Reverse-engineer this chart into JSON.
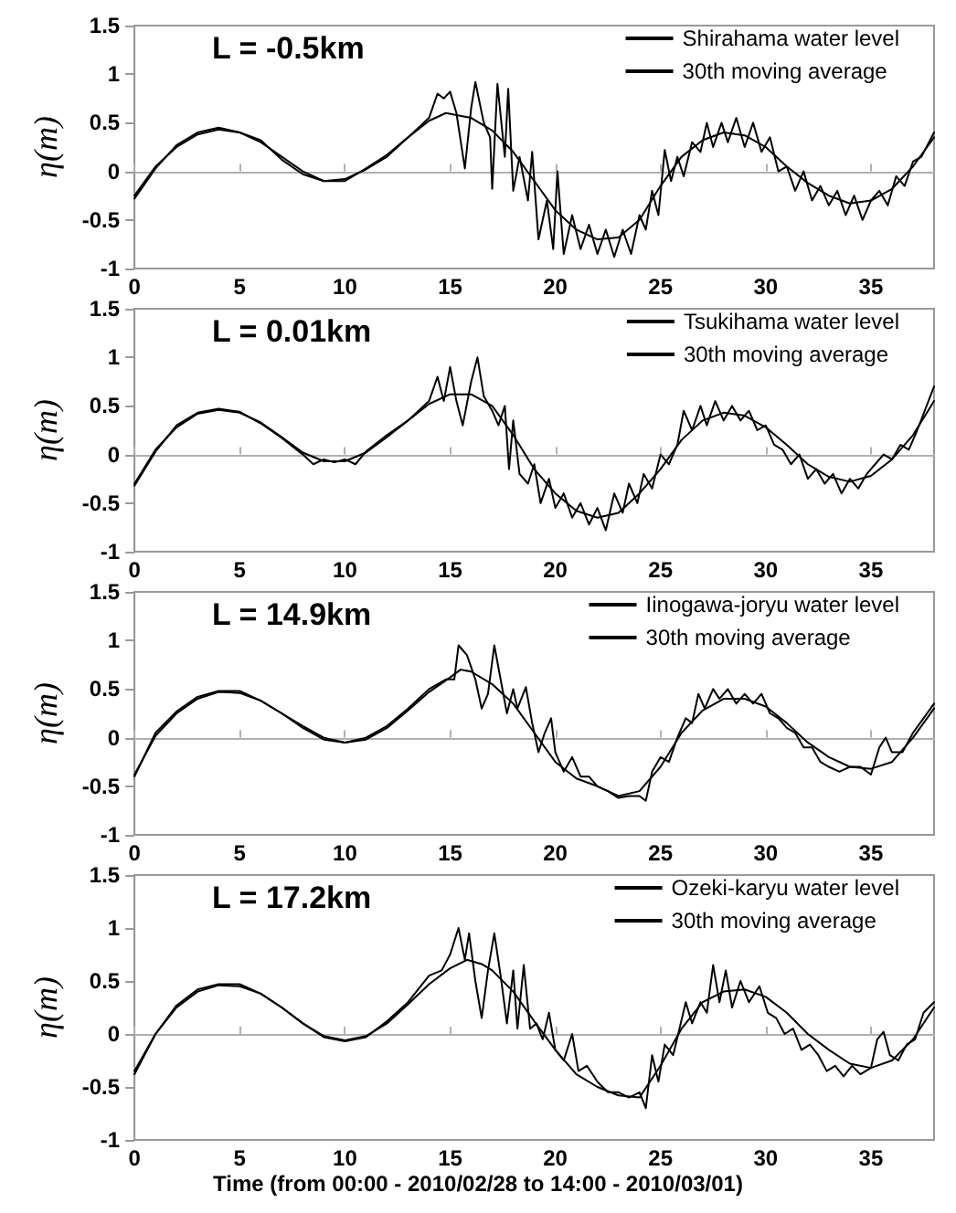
{
  "chart_data": [
    {
      "type": "line",
      "annotations": [
        "L = -0.5km"
      ],
      "ylabel": "η(m)",
      "xlim": [
        0,
        38
      ],
      "xticks": [
        0,
        5,
        10,
        15,
        20,
        25,
        30,
        35
      ],
      "ylim": [
        -1,
        1.5
      ],
      "yticks": [
        -1,
        -0.5,
        0,
        0.5,
        1,
        1.5
      ],
      "legend": "top right",
      "marker": "none",
      "line_style": "solid",
      "series": [
        {
          "name": "Shirahama water level",
          "color": "#000000",
          "x": [
            0,
            1,
            2,
            3,
            4,
            5,
            6,
            7,
            8,
            9,
            10,
            11,
            12,
            13,
            14,
            14.4,
            14.7,
            15,
            15.3,
            15.7,
            16,
            16.2,
            16.6,
            16.9,
            17.0,
            17.25,
            17.6,
            17.76,
            18,
            18.3,
            18.7,
            18.9,
            19.2,
            19.6,
            19.9,
            20.1,
            20.4,
            20.8,
            21.2,
            21.6,
            22,
            22.4,
            22.8,
            23.2,
            23.6,
            24,
            24.3,
            24.6,
            24.9,
            25.2,
            25.5,
            25.8,
            26.1,
            26.5,
            26.9,
            27.2,
            27.5,
            27.9,
            28.2,
            28.6,
            29,
            29.4,
            29.8,
            30.2,
            30.6,
            31,
            31.4,
            31.8,
            32.2,
            32.6,
            33,
            33.4,
            33.8,
            34.2,
            34.6,
            35,
            35.4,
            35.8,
            36.2,
            36.6,
            37,
            37.4,
            38
          ],
          "values": [
            -0.28,
            0.03,
            0.27,
            0.4,
            0.45,
            0.4,
            0.32,
            0.12,
            -0.03,
            -0.1,
            -0.1,
            0.03,
            0.17,
            0.35,
            0.55,
            0.8,
            0.75,
            0.82,
            0.6,
            0.03,
            0.65,
            0.92,
            0.5,
            0.35,
            -0.18,
            0.9,
            0.15,
            0.85,
            -0.2,
            0.15,
            -0.3,
            0.2,
            -0.7,
            -0.3,
            -0.8,
            0.0,
            -0.85,
            -0.45,
            -0.8,
            -0.55,
            -0.85,
            -0.6,
            -0.88,
            -0.6,
            -0.85,
            -0.45,
            -0.6,
            -0.2,
            -0.45,
            0.22,
            -0.1,
            0.15,
            -0.05,
            0.3,
            0.2,
            0.5,
            0.25,
            0.5,
            0.3,
            0.55,
            0.25,
            0.5,
            0.2,
            0.35,
            0.0,
            0.05,
            -0.2,
            0.0,
            -0.3,
            -0.15,
            -0.35,
            -0.2,
            -0.45,
            -0.25,
            -0.5,
            -0.3,
            -0.2,
            -0.35,
            -0.05,
            -0.15,
            0.1,
            0.15,
            0.4
          ]
        },
        {
          "name": "30th moving average",
          "color": "#000000",
          "x": [
            0,
            1,
            2,
            3,
            4,
            5,
            6,
            7,
            8,
            9,
            10,
            11,
            12,
            13,
            14,
            14.8,
            16,
            17,
            18,
            19,
            20,
            21,
            22,
            23,
            24,
            25,
            26,
            27,
            28,
            29,
            30,
            31,
            32,
            33,
            34,
            35,
            36,
            37,
            38
          ],
          "values": [
            -0.25,
            0.05,
            0.25,
            0.38,
            0.43,
            0.4,
            0.3,
            0.15,
            0.0,
            -0.1,
            -0.08,
            0.02,
            0.15,
            0.35,
            0.52,
            0.6,
            0.55,
            0.42,
            0.2,
            -0.1,
            -0.4,
            -0.6,
            -0.7,
            -0.68,
            -0.5,
            -0.15,
            0.15,
            0.32,
            0.4,
            0.37,
            0.25,
            0.05,
            -0.12,
            -0.25,
            -0.33,
            -0.3,
            -0.18,
            0.05,
            0.35
          ]
        }
      ]
    },
    {
      "type": "line",
      "annotations": [
        "L = 0.01km"
      ],
      "ylabel": "η(m)",
      "xlim": [
        0,
        38
      ],
      "xticks": [
        0,
        5,
        10,
        15,
        20,
        25,
        30,
        35
      ],
      "ylim": [
        -1,
        1.5
      ],
      "yticks": [
        -1,
        -0.5,
        0,
        0.5,
        1,
        1.5
      ],
      "legend": "top right",
      "marker": "none",
      "line_style": "solid",
      "series": [
        {
          "name": "Tsukihama water level",
          "color": "#000000",
          "x": [
            0,
            1,
            2,
            3,
            4,
            5,
            6,
            7,
            8,
            8.5,
            9,
            9.5,
            10,
            10.5,
            11,
            12,
            13,
            14,
            14.4,
            14.7,
            15,
            15.3,
            15.6,
            16,
            16.3,
            16.6,
            17,
            17.3,
            17.6,
            17.8,
            18,
            18.3,
            18.7,
            19,
            19.3,
            19.7,
            20,
            20.4,
            20.8,
            21.2,
            21.6,
            22,
            22.4,
            22.8,
            23.2,
            23.5,
            23.9,
            24.2,
            24.6,
            25,
            25.4,
            25.8,
            26.1,
            26.5,
            26.9,
            27.2,
            27.6,
            28,
            28.4,
            28.8,
            29.2,
            29.6,
            30,
            30.4,
            30.8,
            31.2,
            31.6,
            32,
            32.4,
            32.8,
            33.2,
            33.6,
            34,
            34.4,
            34.8,
            35.2,
            35.6,
            36,
            36.4,
            36.8,
            37.2,
            38
          ],
          "values": [
            -0.32,
            0.03,
            0.3,
            0.43,
            0.47,
            0.44,
            0.32,
            0.17,
            0.0,
            -0.1,
            -0.05,
            -0.08,
            -0.05,
            -0.1,
            0.03,
            0.2,
            0.35,
            0.55,
            0.8,
            0.55,
            0.9,
            0.55,
            0.3,
            0.75,
            1.0,
            0.6,
            0.45,
            0.3,
            0.5,
            -0.15,
            0.35,
            -0.2,
            -0.3,
            -0.1,
            -0.5,
            -0.25,
            -0.55,
            -0.4,
            -0.65,
            -0.5,
            -0.72,
            -0.55,
            -0.78,
            -0.4,
            -0.6,
            -0.3,
            -0.5,
            -0.2,
            -0.35,
            0.0,
            -0.1,
            0.1,
            0.45,
            0.25,
            0.5,
            0.3,
            0.55,
            0.35,
            0.5,
            0.35,
            0.45,
            0.25,
            0.3,
            0.1,
            0.05,
            -0.1,
            0.0,
            -0.25,
            -0.15,
            -0.3,
            -0.2,
            -0.4,
            -0.25,
            -0.35,
            -0.2,
            -0.1,
            0.0,
            -0.05,
            0.1,
            0.05,
            0.25,
            0.7
          ]
        },
        {
          "name": "30th moving average",
          "color": "#000000",
          "x": [
            0,
            1,
            2,
            3,
            4,
            5,
            6,
            7,
            8,
            9,
            10,
            11,
            12,
            13,
            14,
            15,
            16,
            17,
            18,
            19,
            20,
            21,
            22,
            23,
            24,
            25,
            26,
            27,
            28,
            29,
            30,
            31,
            32,
            33,
            34,
            35,
            36,
            37,
            38
          ],
          "values": [
            -0.3,
            0.05,
            0.28,
            0.42,
            0.46,
            0.43,
            0.33,
            0.18,
            0.02,
            -0.07,
            -0.07,
            0.02,
            0.18,
            0.35,
            0.52,
            0.62,
            0.62,
            0.5,
            0.2,
            -0.15,
            -0.4,
            -0.58,
            -0.65,
            -0.6,
            -0.4,
            -0.15,
            0.15,
            0.35,
            0.43,
            0.4,
            0.28,
            0.1,
            -0.1,
            -0.23,
            -0.28,
            -0.22,
            -0.05,
            0.2,
            0.55
          ]
        }
      ]
    },
    {
      "type": "line",
      "annotations": [
        "L = 14.9km"
      ],
      "ylabel": "η(m)",
      "xlim": [
        0,
        38
      ],
      "xticks": [
        0,
        5,
        10,
        15,
        20,
        25,
        30,
        35
      ],
      "ylim": [
        -1,
        1.5
      ],
      "yticks": [
        -1,
        -0.5,
        0,
        0.5,
        1,
        1.5
      ],
      "legend": "top right",
      "marker": "none",
      "line_style": "solid",
      "series": [
        {
          "name": "Iinogawa-joryu water level",
          "color": "#000000",
          "x": [
            0,
            1,
            2,
            3,
            4,
            5,
            6,
            7,
            8,
            9,
            10,
            11,
            12,
            13,
            14,
            14.8,
            15.2,
            15.4,
            15.8,
            16.2,
            16.5,
            16.8,
            17.1,
            17.4,
            17.7,
            18,
            18.2,
            18.6,
            18.9,
            19.2,
            19.5,
            19.8,
            20,
            20.4,
            20.8,
            21.2,
            21.6,
            22,
            22.5,
            23,
            23.5,
            24,
            24.3,
            24.6,
            25,
            25.4,
            25.8,
            26.2,
            26.5,
            26.8,
            27.1,
            27.5,
            27.8,
            28.2,
            28.6,
            29,
            29.4,
            29.8,
            30.2,
            30.6,
            31,
            31.4,
            31.8,
            32.2,
            32.6,
            33,
            33.5,
            34,
            34.5,
            35,
            35.4,
            35.7,
            36,
            36.5,
            37,
            37.5,
            38
          ],
          "values": [
            -0.4,
            0.05,
            0.27,
            0.42,
            0.48,
            0.48,
            0.38,
            0.25,
            0.1,
            -0.02,
            -0.05,
            0.0,
            0.12,
            0.3,
            0.5,
            0.6,
            0.6,
            0.95,
            0.85,
            0.6,
            0.3,
            0.45,
            0.95,
            0.6,
            0.25,
            0.5,
            0.3,
            0.52,
            0.15,
            -0.15,
            0.05,
            0.2,
            -0.15,
            -0.35,
            -0.2,
            -0.4,
            -0.4,
            -0.5,
            -0.55,
            -0.62,
            -0.6,
            -0.6,
            -0.65,
            -0.35,
            -0.2,
            -0.25,
            0.0,
            0.2,
            0.15,
            0.45,
            0.3,
            0.5,
            0.4,
            0.5,
            0.35,
            0.45,
            0.35,
            0.45,
            0.25,
            0.2,
            0.1,
            0.05,
            -0.1,
            -0.1,
            -0.25,
            -0.3,
            -0.35,
            -0.3,
            -0.3,
            -0.38,
            -0.1,
            0.0,
            -0.15,
            -0.15,
            0.05,
            0.2,
            0.35
          ]
        },
        {
          "name": "30th moving average",
          "color": "#000000",
          "x": [
            0,
            1,
            2,
            3,
            4,
            5,
            6,
            7,
            8,
            9,
            10,
            11,
            12,
            13,
            14,
            15,
            15.5,
            16,
            17,
            18,
            19,
            20,
            21,
            22,
            23,
            24,
            25,
            26,
            27,
            28,
            29,
            30,
            31,
            32,
            33,
            34,
            35,
            36,
            37,
            38
          ],
          "values": [
            -0.38,
            0.02,
            0.25,
            0.4,
            0.47,
            0.46,
            0.38,
            0.25,
            0.12,
            0.0,
            -0.05,
            -0.02,
            0.1,
            0.28,
            0.47,
            0.62,
            0.7,
            0.68,
            0.55,
            0.35,
            0.05,
            -0.25,
            -0.42,
            -0.5,
            -0.6,
            -0.55,
            -0.3,
            0.05,
            0.28,
            0.4,
            0.4,
            0.32,
            0.15,
            -0.05,
            -0.2,
            -0.3,
            -0.32,
            -0.25,
            0.0,
            0.3
          ]
        }
      ]
    },
    {
      "type": "line",
      "annotations": [
        "L = 17.2km"
      ],
      "ylabel": "η(m)",
      "xlabel": "Time (from 00:00 - 2010/02/28 to 14:00 - 2010/03/01)",
      "xlim": [
        0,
        38
      ],
      "xticks": [
        0,
        5,
        10,
        15,
        20,
        25,
        30,
        35
      ],
      "ylim": [
        -1,
        1.5
      ],
      "yticks": [
        -1,
        -0.5,
        0,
        0.5,
        1,
        1.5
      ],
      "legend": "top right",
      "marker": "none",
      "line_style": "solid",
      "series": [
        {
          "name": "Ozeki-karyu water level",
          "color": "#000000",
          "x": [
            0,
            1,
            2,
            3,
            4,
            5,
            6,
            7,
            8,
            9,
            10,
            11,
            12,
            13,
            14,
            14.6,
            15,
            15.4,
            15.7,
            15.9,
            16.2,
            16.5,
            16.8,
            17.1,
            17.4,
            17.7,
            18,
            18.2,
            18.5,
            18.8,
            19.1,
            19.4,
            19.7,
            20,
            20.4,
            20.8,
            21.1,
            21.5,
            22,
            22.5,
            23,
            23.5,
            24,
            24.3,
            24.6,
            24.9,
            25.2,
            25.6,
            25.9,
            26.2,
            26.5,
            26.9,
            27.2,
            27.5,
            27.8,
            28.1,
            28.4,
            28.8,
            29.2,
            29.7,
            30.1,
            30.5,
            30.9,
            31.3,
            31.7,
            32.1,
            32.5,
            32.9,
            33.3,
            33.7,
            34.1,
            34.5,
            35,
            35.3,
            35.6,
            35.9,
            36.3,
            36.7,
            37.1,
            37.5,
            38
          ],
          "values": [
            -0.38,
            0.0,
            0.27,
            0.42,
            0.47,
            0.47,
            0.38,
            0.25,
            0.1,
            -0.03,
            -0.07,
            -0.03,
            0.12,
            0.3,
            0.55,
            0.6,
            0.75,
            1.0,
            0.7,
            0.95,
            0.5,
            0.15,
            0.6,
            0.95,
            0.55,
            0.1,
            0.6,
            0.05,
            0.65,
            0.05,
            0.1,
            -0.05,
            0.2,
            -0.15,
            -0.25,
            0.0,
            -0.35,
            -0.3,
            -0.45,
            -0.55,
            -0.55,
            -0.6,
            -0.55,
            -0.7,
            -0.2,
            -0.45,
            -0.1,
            -0.2,
            0.05,
            0.3,
            0.1,
            0.3,
            0.2,
            0.65,
            0.3,
            0.6,
            0.25,
            0.5,
            0.3,
            0.45,
            0.2,
            0.15,
            0.0,
            0.05,
            -0.15,
            -0.1,
            -0.2,
            -0.35,
            -0.3,
            -0.4,
            -0.3,
            -0.38,
            -0.32,
            -0.05,
            0.02,
            -0.2,
            -0.25,
            -0.1,
            -0.05,
            0.2,
            0.3
          ]
        },
        {
          "name": "30th moving average",
          "color": "#000000",
          "x": [
            0,
            1,
            2,
            3,
            4,
            5,
            6,
            7,
            8,
            9,
            10,
            11,
            12,
            13,
            14,
            15,
            15.8,
            16.5,
            17,
            18,
            19,
            20,
            21,
            22,
            23,
            24,
            25,
            26,
            27,
            28,
            29,
            30,
            31,
            32,
            33,
            34,
            35,
            36,
            37,
            38
          ],
          "values": [
            -0.35,
            0.0,
            0.25,
            0.4,
            0.46,
            0.45,
            0.38,
            0.25,
            0.1,
            -0.02,
            -0.06,
            -0.02,
            0.1,
            0.28,
            0.47,
            0.62,
            0.7,
            0.66,
            0.6,
            0.4,
            0.12,
            -0.15,
            -0.38,
            -0.5,
            -0.58,
            -0.6,
            -0.3,
            0.05,
            0.3,
            0.4,
            0.42,
            0.35,
            0.2,
            0.0,
            -0.15,
            -0.28,
            -0.32,
            -0.25,
            -0.05,
            0.25
          ]
        }
      ]
    }
  ]
}
